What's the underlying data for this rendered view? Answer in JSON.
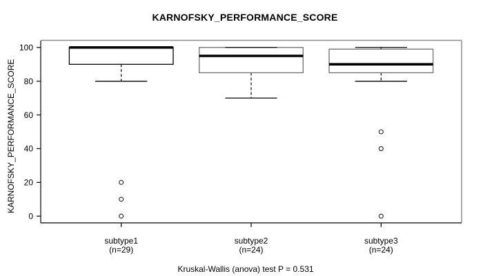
{
  "colors": {
    "foreground": "#000000",
    "background": "#ffffff"
  },
  "chart_data": {
    "type": "box",
    "title": "KARNOFSKY_PERFORMANCE_SCORE",
    "ylabel": "KARNOFSKY_PERFORMANCE_SCORE",
    "xlabel": "",
    "annotation": "Kruskal-Wallis (anova) test P = 0.531",
    "p_value": 0.531,
    "ylim": [
      0,
      100
    ],
    "yticks": [
      0,
      20,
      40,
      60,
      80,
      100
    ],
    "grid": false,
    "legend": "none",
    "categories": [
      "subtype1",
      "subtype2",
      "subtype3"
    ],
    "category_sublabels": [
      "(n=29)",
      "(n=24)",
      "(n=24)"
    ],
    "series": [
      {
        "name": "subtype1",
        "n": 29,
        "whisker_low": 80,
        "q1": 90,
        "median": 100,
        "q3": 100,
        "whisker_high": 100,
        "outliers": [
          20,
          10,
          0
        ]
      },
      {
        "name": "subtype2",
        "n": 24,
        "whisker_low": 70,
        "q1": 85,
        "median": 95,
        "q3": 100,
        "whisker_high": 100,
        "outliers": []
      },
      {
        "name": "subtype3",
        "n": 24,
        "whisker_low": 80,
        "q1": 85,
        "median": 90,
        "q3": 99,
        "whisker_high": 100,
        "outliers": [
          50,
          40,
          0
        ]
      }
    ]
  }
}
